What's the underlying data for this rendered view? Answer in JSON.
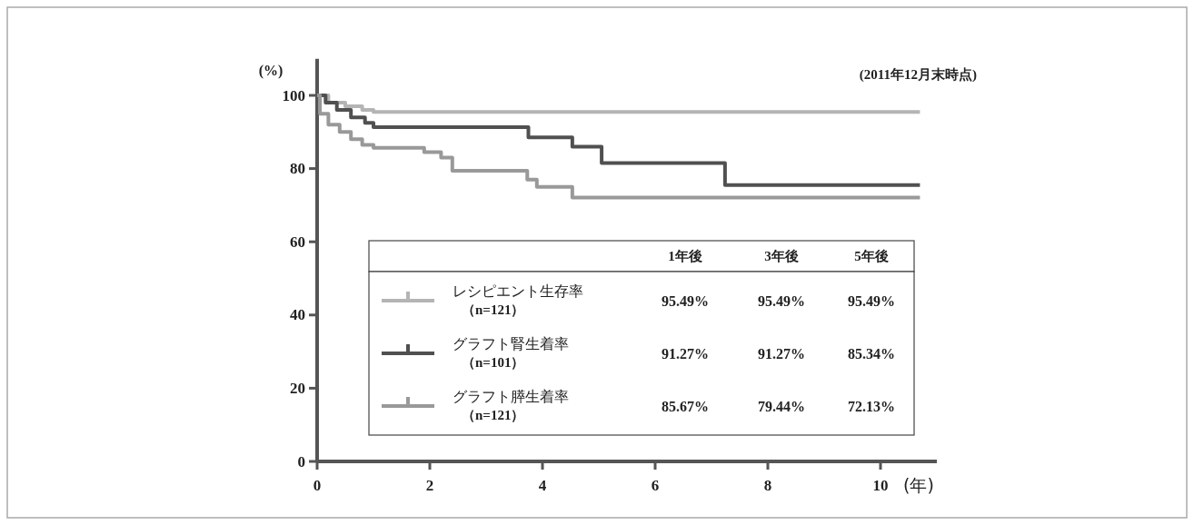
{
  "chart_data": {
    "type": "step",
    "ylabel": "(%)",
    "xlabel": "(年)",
    "xlim": [
      0,
      11
    ],
    "ylim": [
      0,
      110
    ],
    "xticks": [
      0,
      2,
      4,
      6,
      8,
      10
    ],
    "yticks": [
      0,
      20,
      40,
      60,
      80,
      100
    ],
    "grid": false,
    "legend": "bottom",
    "legend_title": null,
    "series": [
      {
        "name": "レシピエント生存率（n=121）",
        "color": "#b4b4b4",
        "x": [
          0,
          0.2,
          0.5,
          0.8,
          1.0,
          10.7
        ],
        "values": [
          100,
          98,
          97,
          96,
          95.5,
          95.5
        ]
      },
      {
        "name": "グラフト腎生着率（n=101）",
        "color": "#505050",
        "x": [
          0,
          0.15,
          0.35,
          0.6,
          0.85,
          1.0,
          3.75,
          4.53,
          5.05,
          7.24,
          10.7
        ],
        "values": [
          100,
          98,
          96,
          94,
          92.5,
          91.3,
          88.5,
          86,
          81.5,
          75.5,
          75.5
        ]
      },
      {
        "name": "グラフト膵生着率（n=121）",
        "color": "#999999",
        "x": [
          0,
          0.05,
          0.2,
          0.4,
          0.6,
          0.8,
          1.0,
          1.9,
          2.2,
          2.4,
          3.73,
          3.9,
          4.53,
          10.7
        ],
        "values": [
          100,
          95,
          92,
          90,
          88,
          86.5,
          85.7,
          84.5,
          83,
          79.4,
          77,
          75,
          72.1,
          72.1
        ]
      }
    ],
    "annotations": [
      "(2011年12月末時点)",
      "1年後",
      "3年後",
      "5年後",
      "95.49%",
      "95.49%",
      "95.49%",
      "91.27%",
      "91.27%",
      "85.34%",
      "85.67%",
      "79.44%",
      "72.13%"
    ]
  }
}
